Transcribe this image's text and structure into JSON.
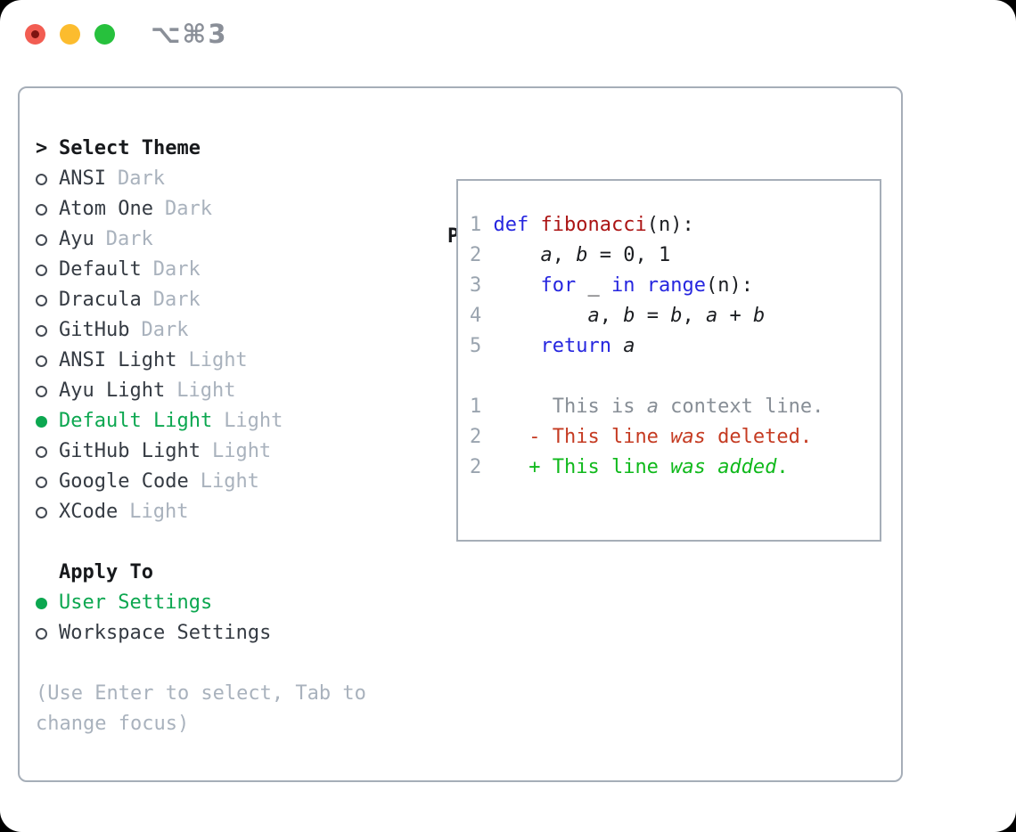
{
  "titlebar": {
    "shortcut": "⌥⌘3",
    "lights": [
      "close",
      "minimize",
      "zoom"
    ]
  },
  "colors": {
    "selected_green": "#0ca750",
    "diff_added_green": "#10b91c",
    "diff_deleted_red": "#c53b22",
    "keyword_blue": "#2626df",
    "function_red": "#ab1414",
    "muted_gray": "#a9b2bd",
    "border_gray": "#a6aeb8",
    "traffic_red": "#f25d52",
    "traffic_yellow": "#fcbc2e",
    "traffic_green": "#27c13d"
  },
  "panel": {
    "theme_section": {
      "header_prefix": ">",
      "header": "Select Theme",
      "items": [
        {
          "name": "ANSI",
          "tag": "Dark",
          "selected": false
        },
        {
          "name": "Atom One",
          "tag": "Dark",
          "selected": false
        },
        {
          "name": "Ayu",
          "tag": "Dark",
          "selected": false
        },
        {
          "name": "Default",
          "tag": "Dark",
          "selected": false
        },
        {
          "name": "Dracula",
          "tag": "Dark",
          "selected": false
        },
        {
          "name": "GitHub",
          "tag": "Dark",
          "selected": false
        },
        {
          "name": "ANSI Light",
          "tag": "Light",
          "selected": false
        },
        {
          "name": "Ayu Light",
          "tag": "Light",
          "selected": false
        },
        {
          "name": "Default Light",
          "tag": "Light",
          "selected": true
        },
        {
          "name": "GitHub Light",
          "tag": "Light",
          "selected": false
        },
        {
          "name": "Google Code",
          "tag": "Light",
          "selected": false
        },
        {
          "name": "XCode",
          "tag": "Light",
          "selected": false
        }
      ]
    },
    "apply_section": {
      "header": "Apply To",
      "items": [
        {
          "name": "User Settings",
          "selected": true
        },
        {
          "name": "Workspace Settings",
          "selected": false
        }
      ]
    },
    "help_lines": [
      "(Use Enter to select, Tab to",
      "change focus)"
    ],
    "preview": {
      "header": "Preview",
      "code_lines": [
        {
          "num": "1",
          "segments": [
            {
              "t": "def ",
              "c": "kw"
            },
            {
              "t": "fibonacci",
              "c": "fn"
            },
            {
              "t": "(n):",
              "c": "pl"
            }
          ]
        },
        {
          "num": "2",
          "segments": [
            {
              "t": "    ",
              "c": "pl"
            },
            {
              "t": "a",
              "c": "var"
            },
            {
              "t": ", ",
              "c": "pl"
            },
            {
              "t": "b",
              "c": "var"
            },
            {
              "t": " = 0, 1",
              "c": "pl"
            }
          ]
        },
        {
          "num": "3",
          "segments": [
            {
              "t": "    ",
              "c": "pl"
            },
            {
              "t": "for",
              "c": "kw"
            },
            {
              "t": " _ ",
              "c": "pl"
            },
            {
              "t": "in",
              "c": "kw"
            },
            {
              "t": " ",
              "c": "pl"
            },
            {
              "t": "range",
              "c": "kw"
            },
            {
              "t": "(n):",
              "c": "pl"
            }
          ]
        },
        {
          "num": "4",
          "segments": [
            {
              "t": "        ",
              "c": "pl"
            },
            {
              "t": "a",
              "c": "var"
            },
            {
              "t": ", ",
              "c": "pl"
            },
            {
              "t": "b",
              "c": "var"
            },
            {
              "t": " = ",
              "c": "pl"
            },
            {
              "t": "b",
              "c": "var"
            },
            {
              "t": ", ",
              "c": "pl"
            },
            {
              "t": "a",
              "c": "var"
            },
            {
              "t": " + ",
              "c": "pl"
            },
            {
              "t": "b",
              "c": "var"
            }
          ]
        },
        {
          "num": "5",
          "segments": [
            {
              "t": "    ",
              "c": "pl"
            },
            {
              "t": "return",
              "c": "kw"
            },
            {
              "t": " ",
              "c": "pl"
            },
            {
              "t": "a",
              "c": "var"
            }
          ]
        },
        {
          "num": "",
          "segments": []
        },
        {
          "num": "1",
          "segments": [
            {
              "t": "     This is ",
              "c": "ctx"
            },
            {
              "t": "a",
              "c": "ctxi"
            },
            {
              "t": " context line.",
              "c": "ctx"
            }
          ]
        },
        {
          "num": "2",
          "segments": [
            {
              "t": "   - This line ",
              "c": "del"
            },
            {
              "t": "was",
              "c": "deli"
            },
            {
              "t": " deleted.",
              "c": "del"
            }
          ]
        },
        {
          "num": "2",
          "segments": [
            {
              "t": "   + This line ",
              "c": "add"
            },
            {
              "t": "was",
              "c": "addi"
            },
            {
              "t": " ",
              "c": "add"
            },
            {
              "t": "added",
              "c": "addi"
            },
            {
              "t": ".",
              "c": "add"
            }
          ]
        }
      ]
    }
  }
}
